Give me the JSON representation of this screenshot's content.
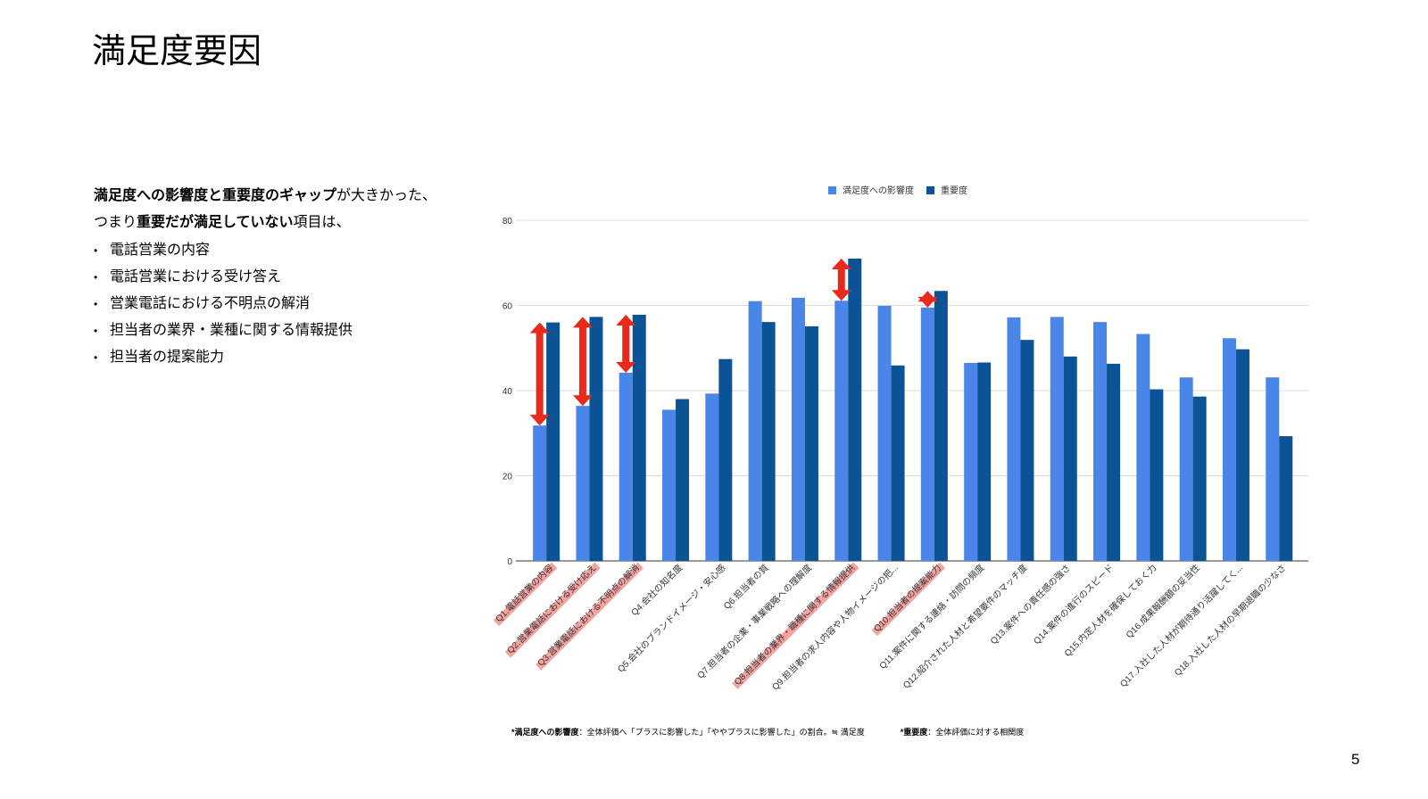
{
  "title": "満足度要因",
  "intro": [
    {
      "text": "満足度への影響度と重要度のギャップ",
      "bold": true
    },
    {
      "text": "が大きかった、つまり",
      "bold": false
    },
    {
      "text": "重要だが満足していない",
      "bold": true
    },
    {
      "text": "項目は、",
      "bold": false
    }
  ],
  "bullets": [
    "電話営業の内容",
    "電話営業における受け答え",
    "営業電話における不明点の解消",
    "担当者の業界・業種に関する情報提供",
    "担当者の提案能力"
  ],
  "chart_data": {
    "type": "bar",
    "categories": [
      "Q1.電話営業の内容",
      "Q2.営業電話における受け応え",
      "Q3.営業電話における不明点の解消",
      "Q4.会社の知名度",
      "Q5.会社のブランドイメージ・安心感",
      "Q6.担当者の質",
      "Q7.担当者の企業・事業戦略への理解度",
      "Q8.担当者の業界・職種に関する情報提供",
      "Q9.担当者の求人内容や人物イメージの把...",
      "Q10.担当者の提案能力",
      "Q11.案件に関する連絡・訪問の頻度",
      "Q12.紹介された人材と希望要件のマッチ度",
      "Q13.案件への責任感の強さ",
      "Q14.案件の進行のスピード",
      "Q15.内定人材を確保しておく力",
      "Q16.成果報酬額の妥当性",
      "Q17.入社した人材が期待通り活躍してく...",
      "Q18.入社した人材の早期退職の少なさ"
    ],
    "series": [
      {
        "name": "満足度への影響度",
        "color": "#4a86e8",
        "values": [
          31.8,
          36.4,
          44.2,
          35.5,
          39.3,
          61,
          61.8,
          61.1,
          59.9,
          59.5,
          46.5,
          57.2,
          57.3,
          56.1,
          53.3,
          43.1,
          52.3,
          43.1
        ]
      },
      {
        "name": "重要度",
        "color": "#0b5394",
        "values": [
          56,
          57.3,
          57.8,
          38,
          47.4,
          56.1,
          55.1,
          71,
          45.9,
          63.4,
          46.6,
          51.9,
          48,
          46.3,
          40.3,
          38.6,
          49.7,
          29.3
        ]
      }
    ],
    "highlighted": [
      0,
      1,
      2,
      7,
      9
    ],
    "highlight_color": "#f4a3a0",
    "arrow_color": "#e8291c",
    "ylim": [
      0,
      80
    ],
    "yticks": [
      0,
      20,
      40,
      60,
      80
    ],
    "grid": true,
    "legend": "top"
  },
  "footnotes": [
    [
      {
        "text": "*満足度への影響度",
        "bold": true
      },
      {
        "text": "：全体評価へ「プラスに影響した」「ややプラスに影響した」の割合。≒ 満足度",
        "bold": false
      }
    ],
    [
      {
        "text": "*重要度",
        "bold": true
      },
      {
        "text": "：全体評価に対する相関度",
        "bold": false
      }
    ]
  ],
  "page_number": "5"
}
